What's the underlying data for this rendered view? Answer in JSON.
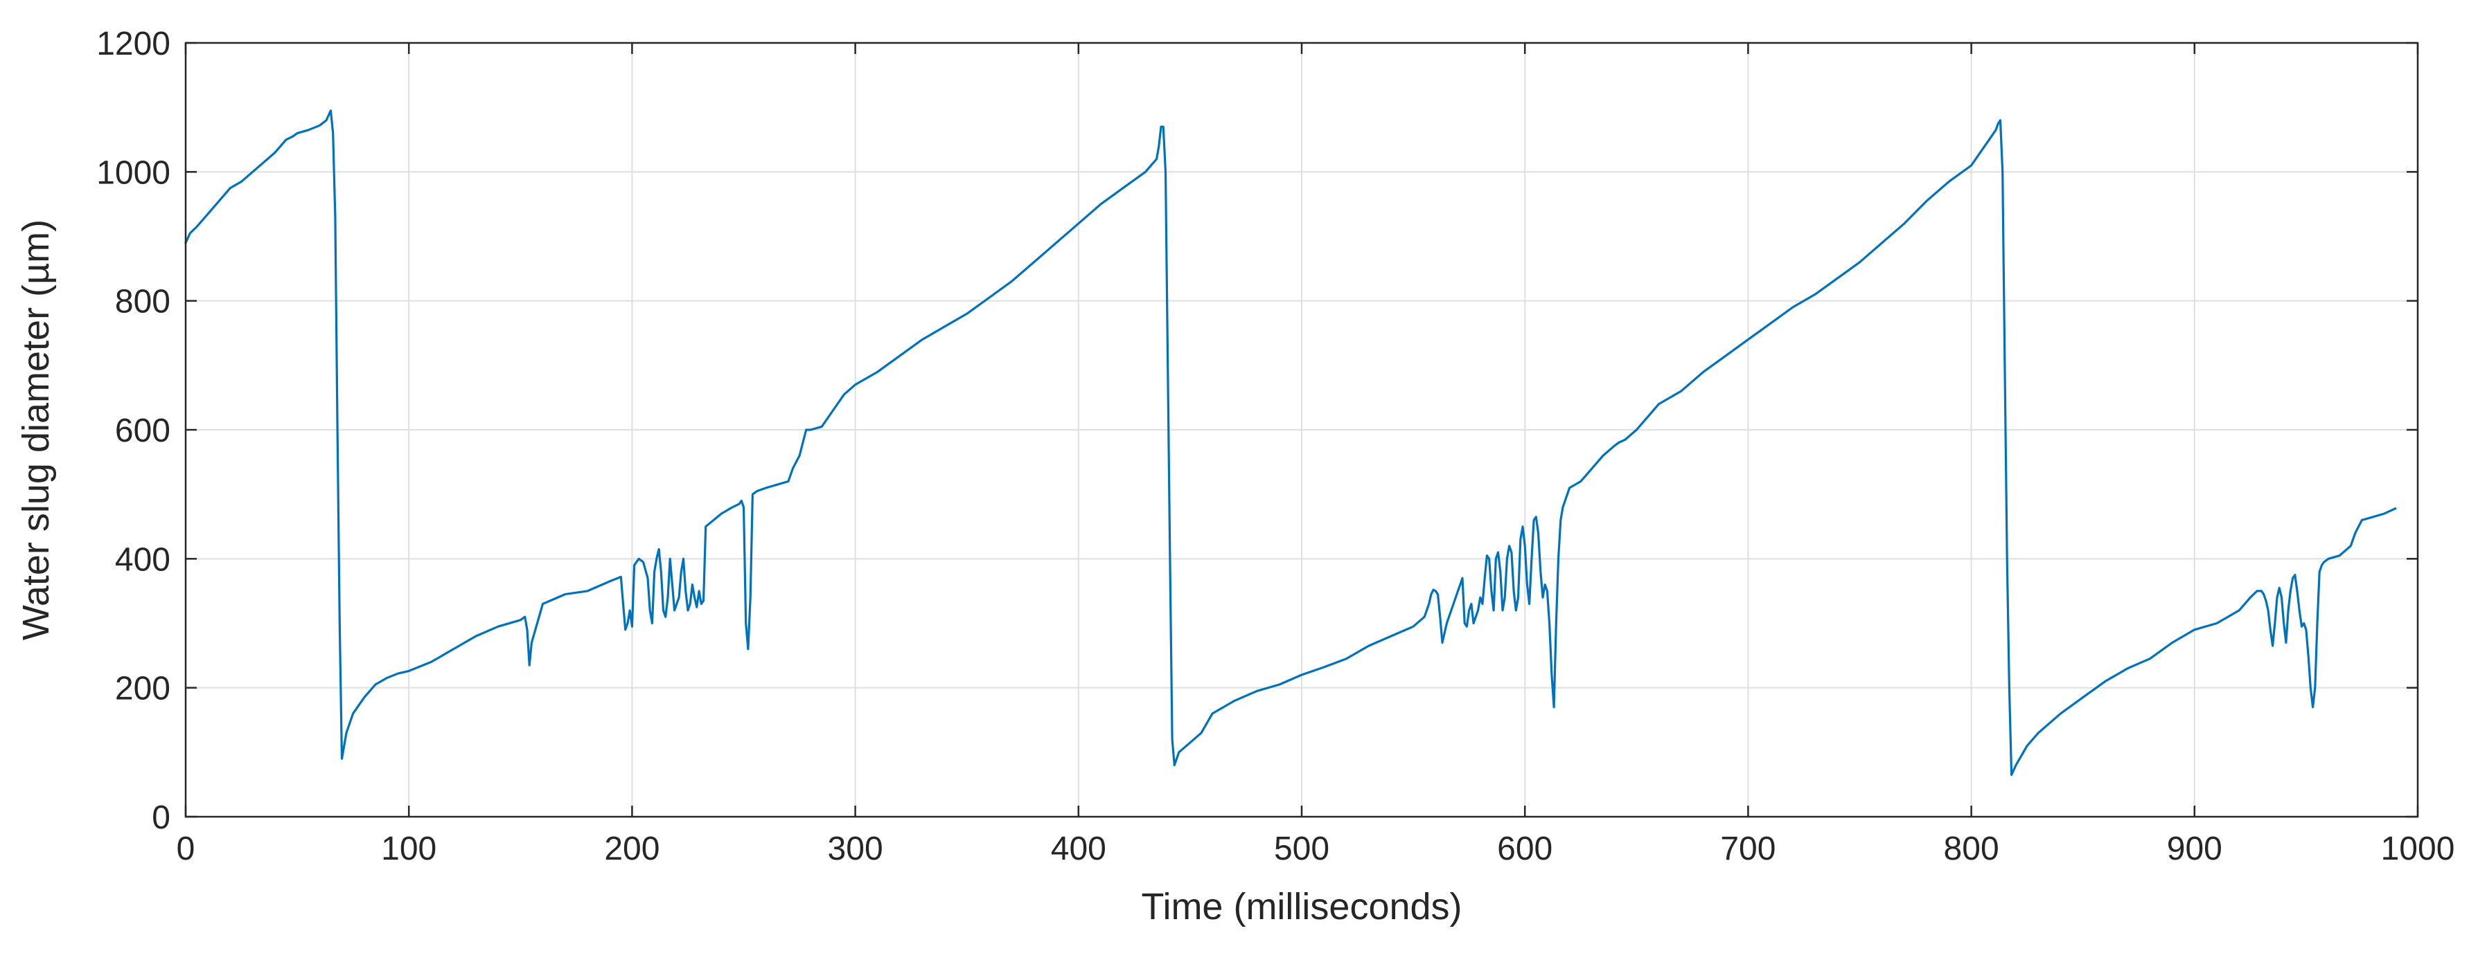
{
  "chart_data": {
    "type": "line",
    "title": "",
    "xlabel": "Time (milliseconds)",
    "ylabel": "Water slug diameter (µm)",
    "xlim": [
      0,
      1000
    ],
    "ylim": [
      0,
      1200
    ],
    "xticks": [
      0,
      100,
      200,
      300,
      400,
      500,
      600,
      700,
      800,
      900,
      1000
    ],
    "yticks": [
      0,
      200,
      400,
      600,
      800,
      1000,
      1200
    ],
    "xtick_labels": [
      "0",
      "100",
      "200",
      "300",
      "400",
      "500",
      "600",
      "700",
      "800",
      "900",
      "1000"
    ],
    "ytick_labels": [
      "0",
      "200",
      "400",
      "600",
      "800",
      "1000",
      "1200"
    ],
    "grid": true,
    "legend": "none",
    "colors": {
      "line": "#0072BD",
      "grid": "#dfdfdf",
      "axes": "#262626"
    },
    "series": [
      {
        "x": [
          0,
          2,
          5,
          10,
          15,
          20,
          25,
          30,
          35,
          40,
          45,
          48,
          50,
          55,
          60,
          63,
          65,
          66,
          67,
          68,
          69,
          70,
          72,
          75,
          80,
          85,
          90,
          95,
          100,
          110,
          120,
          130,
          140,
          150,
          152,
          153,
          154,
          155,
          160,
          170,
          180,
          190,
          195,
          196,
          197,
          198,
          199,
          200,
          201,
          203,
          205,
          207,
          208,
          209,
          210,
          211,
          212,
          213,
          214,
          215,
          216,
          217,
          218,
          219,
          220,
          221,
          222,
          223,
          224,
          225,
          226,
          227,
          228,
          229,
          230,
          231,
          232,
          233,
          240,
          245,
          248,
          249,
          250,
          251,
          252,
          253,
          254,
          256,
          260,
          265,
          270,
          272,
          275,
          278,
          280,
          285,
          290,
          295,
          300,
          310,
          320,
          330,
          340,
          350,
          360,
          370,
          380,
          390,
          400,
          410,
          420,
          430,
          435,
          436,
          437,
          438,
          439,
          440,
          441,
          442,
          443,
          445,
          450,
          455,
          460,
          470,
          480,
          490,
          500,
          510,
          520,
          530,
          540,
          550,
          555,
          557,
          558,
          559,
          560,
          561,
          562,
          563,
          565,
          570,
          571,
          572,
          573,
          574,
          575,
          576,
          577,
          578,
          579,
          580,
          581,
          582,
          583,
          584,
          585,
          586,
          587,
          588,
          589,
          590,
          591,
          592,
          593,
          594,
          595,
          596,
          597,
          598,
          599,
          600,
          601,
          602,
          603,
          604,
          605,
          606,
          607,
          608,
          609,
          610,
          611,
          612,
          613,
          614,
          615,
          616,
          617,
          618,
          619,
          620,
          625,
          630,
          635,
          640,
          642,
          645,
          650,
          655,
          660,
          670,
          680,
          690,
          700,
          710,
          720,
          730,
          740,
          750,
          760,
          770,
          780,
          790,
          800,
          805,
          808,
          810,
          811,
          812,
          813,
          814,
          815,
          816,
          817,
          818,
          820,
          825,
          830,
          840,
          850,
          860,
          870,
          880,
          890,
          900,
          910,
          920,
          925,
          928,
          930,
          931,
          932,
          933,
          934,
          935,
          936,
          937,
          938,
          939,
          940,
          941,
          942,
          943,
          944,
          945,
          946,
          947,
          948,
          949,
          950,
          951,
          952,
          953,
          954,
          955,
          956,
          957,
          958,
          960,
          965,
          970,
          972,
          975,
          980,
          985,
          990
        ],
        "values": [
          890,
          905,
          915,
          935,
          955,
          975,
          985,
          1000,
          1015,
          1030,
          1050,
          1055,
          1060,
          1065,
          1072,
          1080,
          1095,
          1060,
          930,
          600,
          300,
          90,
          130,
          160,
          185,
          205,
          215,
          222,
          226,
          240,
          260,
          280,
          295,
          305,
          310,
          290,
          235,
          270,
          330,
          345,
          350,
          365,
          372,
          330,
          290,
          300,
          320,
          295,
          390,
          400,
          395,
          370,
          320,
          300,
          380,
          400,
          415,
          380,
          320,
          310,
          340,
          400,
          360,
          320,
          330,
          340,
          380,
          400,
          350,
          320,
          330,
          360,
          340,
          325,
          350,
          330,
          335,
          450,
          470,
          480,
          485,
          490,
          480,
          300,
          260,
          340,
          500,
          505,
          510,
          515,
          520,
          540,
          560,
          600,
          600,
          605,
          630,
          655,
          670,
          690,
          715,
          740,
          760,
          780,
          805,
          830,
          860,
          890,
          920,
          950,
          975,
          1000,
          1020,
          1040,
          1070,
          1070,
          1000,
          700,
          400,
          120,
          80,
          100,
          115,
          130,
          160,
          180,
          195,
          205,
          220,
          232,
          245,
          265,
          280,
          295,
          310,
          330,
          345,
          352,
          350,
          345,
          310,
          270,
          300,
          350,
          360,
          370,
          300,
          295,
          320,
          330,
          300,
          310,
          320,
          340,
          330,
          370,
          405,
          400,
          350,
          320,
          400,
          410,
          380,
          320,
          340,
          400,
          420,
          410,
          350,
          320,
          340,
          430,
          450,
          420,
          360,
          330,
          400,
          460,
          465,
          440,
          380,
          340,
          360,
          350,
          300,
          220,
          170,
          300,
          400,
          460,
          480,
          490,
          500,
          510,
          520,
          540,
          560,
          575,
          580,
          585,
          600,
          620,
          640,
          660,
          690,
          715,
          740,
          765,
          790,
          810,
          835,
          860,
          890,
          920,
          955,
          985,
          1010,
          1035,
          1050,
          1060,
          1065,
          1075,
          1080,
          1000,
          700,
          400,
          200,
          65,
          80,
          110,
          130,
          160,
          185,
          210,
          230,
          245,
          270,
          290,
          300,
          320,
          340,
          350,
          350,
          345,
          335,
          320,
          290,
          265,
          300,
          340,
          355,
          340,
          300,
          270,
          320,
          350,
          370,
          375,
          350,
          320,
          295,
          300,
          290,
          250,
          200,
          170,
          200,
          300,
          380,
          390,
          395,
          400,
          405,
          420,
          440,
          460,
          465,
          470,
          478
        ]
      }
    ]
  }
}
